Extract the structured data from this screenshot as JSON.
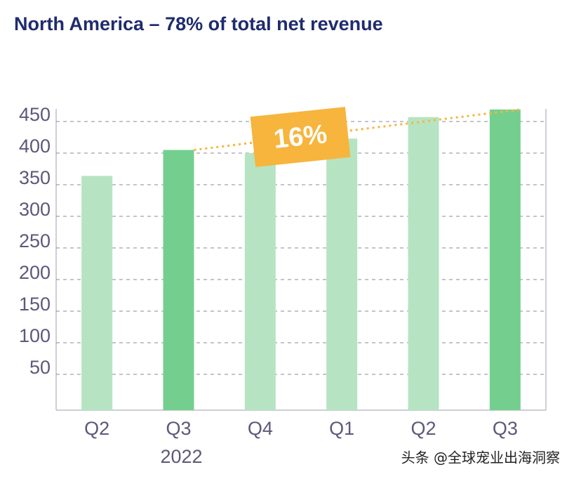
{
  "chart_data": {
    "type": "bar",
    "title": "North America – 78% of total net revenue",
    "categories": [
      "Q2",
      "Q3",
      "Q4",
      "Q1",
      "Q2",
      "Q3"
    ],
    "year_label": "2022",
    "values": [
      364,
      405,
      400,
      423,
      457,
      469
    ],
    "colors": [
      "#b6e4c2",
      "#74cf8e",
      "#b6e4c2",
      "#b6e4c2",
      "#b6e4c2",
      "#74cf8e"
    ],
    "ylim": [
      0,
      470
    ],
    "yticks": [
      50,
      100,
      150,
      200,
      250,
      300,
      350,
      400,
      450
    ],
    "grid": true,
    "annotation": "16%",
    "annotation_color": "#f7b53d",
    "watermark": "头条 @全球宠业出海洞察"
  }
}
